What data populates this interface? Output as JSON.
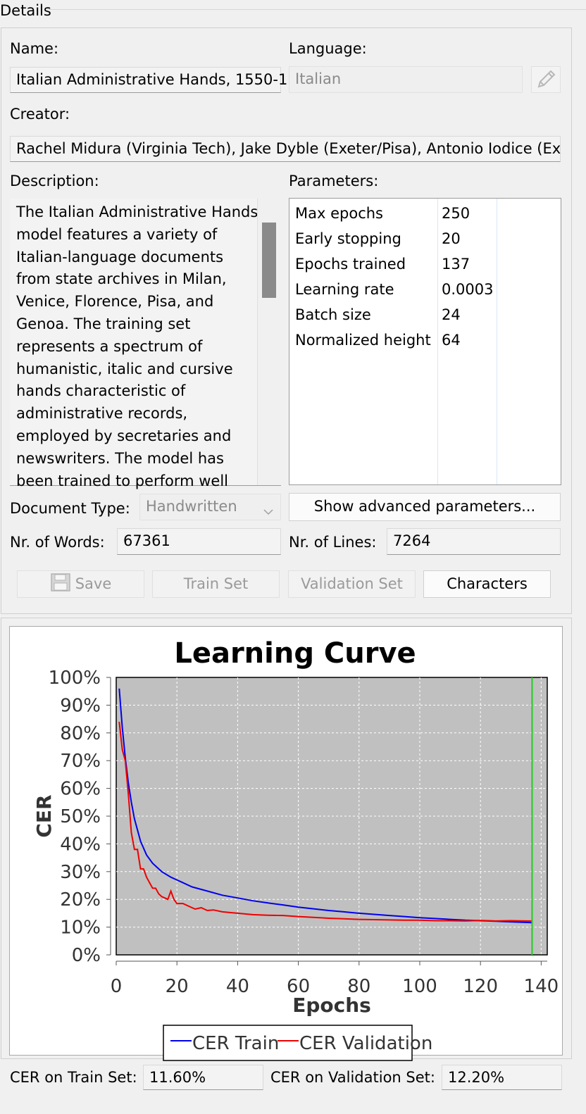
{
  "panel": {
    "title": "Details"
  },
  "form": {
    "name_label": "Name:",
    "name_value": "Italian Administrative Hands, 1550-1",
    "language_label": "Language:",
    "language_value": "Italian",
    "creator_label": "Creator:",
    "creator_value": "Rachel Midura (Virginia Tech), Jake Dyble (Exeter/Pisa), Antonio Iodice (Ex",
    "description_label": "Description:",
    "description_value": "The Italian Administrative Hands model features a variety of Italian-language documents from state archives in Milan, Venice, Florence, Pisa, and Genoa. The training set represents a spectrum of humanistic, italic and cursive hands characteristic of administrative records, employed by secretaries and newswriters. The model has been trained to perform well",
    "parameters_label": "Parameters:",
    "parameters": [
      {
        "name": "Max epochs",
        "value": "250"
      },
      {
        "name": "Early stopping",
        "value": "20"
      },
      {
        "name": "Epochs trained",
        "value": "137"
      },
      {
        "name": "Learning rate",
        "value": "0.0003"
      },
      {
        "name": "Batch size",
        "value": "24"
      },
      {
        "name": "Normalized height",
        "value": "64"
      }
    ],
    "doctype_label": "Document Type:",
    "doctype_value": "Handwritten",
    "advanced_button": "Show advanced parameters...",
    "words_label": "Nr. of Words:",
    "words_value": "67361",
    "lines_label": "Nr. of Lines:",
    "lines_value": "7264"
  },
  "buttons": {
    "save": "Save",
    "train_set": "Train Set",
    "validation_set": "Validation Set",
    "characters": "Characters"
  },
  "chart_data": {
    "type": "line",
    "title": "Learning Curve",
    "xlabel": "Epochs",
    "ylabel": "CER",
    "xlim": [
      0,
      142
    ],
    "ylim": [
      0,
      100
    ],
    "xticks": [
      0,
      20,
      40,
      60,
      80,
      100,
      120,
      140
    ],
    "yticks": [
      0,
      10,
      20,
      30,
      40,
      50,
      60,
      70,
      80,
      90,
      100
    ],
    "ytick_suffix": "%",
    "grid": true,
    "legend_position": "bottom-center",
    "marker_epoch": 137,
    "marker_color": "#22cc22",
    "plot_bg": "#c0c0c0",
    "series": [
      {
        "name": "CER Train",
        "color": "#0000ee",
        "x": [
          1,
          2,
          3,
          4,
          5,
          6,
          7,
          8,
          10,
          12,
          15,
          18,
          20,
          25,
          30,
          35,
          40,
          45,
          50,
          55,
          60,
          65,
          70,
          75,
          80,
          85,
          90,
          95,
          100,
          105,
          110,
          115,
          120,
          125,
          130,
          135,
          137
        ],
        "y": [
          96,
          82,
          71,
          62,
          55,
          49,
          45,
          41,
          36,
          33,
          30,
          28,
          27,
          24.5,
          23,
          21.5,
          20.5,
          19.5,
          18.7,
          18,
          17.2,
          16.6,
          16,
          15.5,
          15,
          14.6,
          14.2,
          13.8,
          13.4,
          13.1,
          12.8,
          12.5,
          12.3,
          12.1,
          11.9,
          11.7,
          11.6
        ]
      },
      {
        "name": "CER Validation",
        "color": "#ee0000",
        "x": [
          1,
          2,
          3,
          4,
          5,
          6,
          7,
          8,
          9,
          10,
          11,
          12,
          13,
          14,
          15,
          16,
          17,
          18,
          19,
          20,
          22,
          24,
          26,
          28,
          30,
          32,
          35,
          38,
          40,
          45,
          50,
          55,
          60,
          65,
          70,
          75,
          80,
          85,
          90,
          95,
          100,
          105,
          110,
          115,
          120,
          125,
          130,
          135,
          137
        ],
        "y": [
          84,
          74,
          70,
          58,
          44,
          38,
          38,
          31,
          31,
          28,
          26,
          24,
          24,
          22,
          21,
          20.5,
          20,
          23,
          20,
          18.5,
          18.5,
          17.5,
          16.5,
          17,
          16,
          16.2,
          15.5,
          15.2,
          15,
          14.5,
          14.3,
          14.2,
          13.8,
          13.5,
          13.2,
          13,
          12.8,
          12.7,
          12.6,
          12.5,
          12.5,
          12.3,
          12.3,
          12.2,
          12.4,
          12.2,
          12.3,
          12.2,
          12.2
        ]
      }
    ]
  },
  "footer": {
    "cer_train_label": "CER on Train Set:",
    "cer_train_value": "11.60%",
    "cer_val_label": "CER on Validation Set:",
    "cer_val_value": "12.20%"
  }
}
